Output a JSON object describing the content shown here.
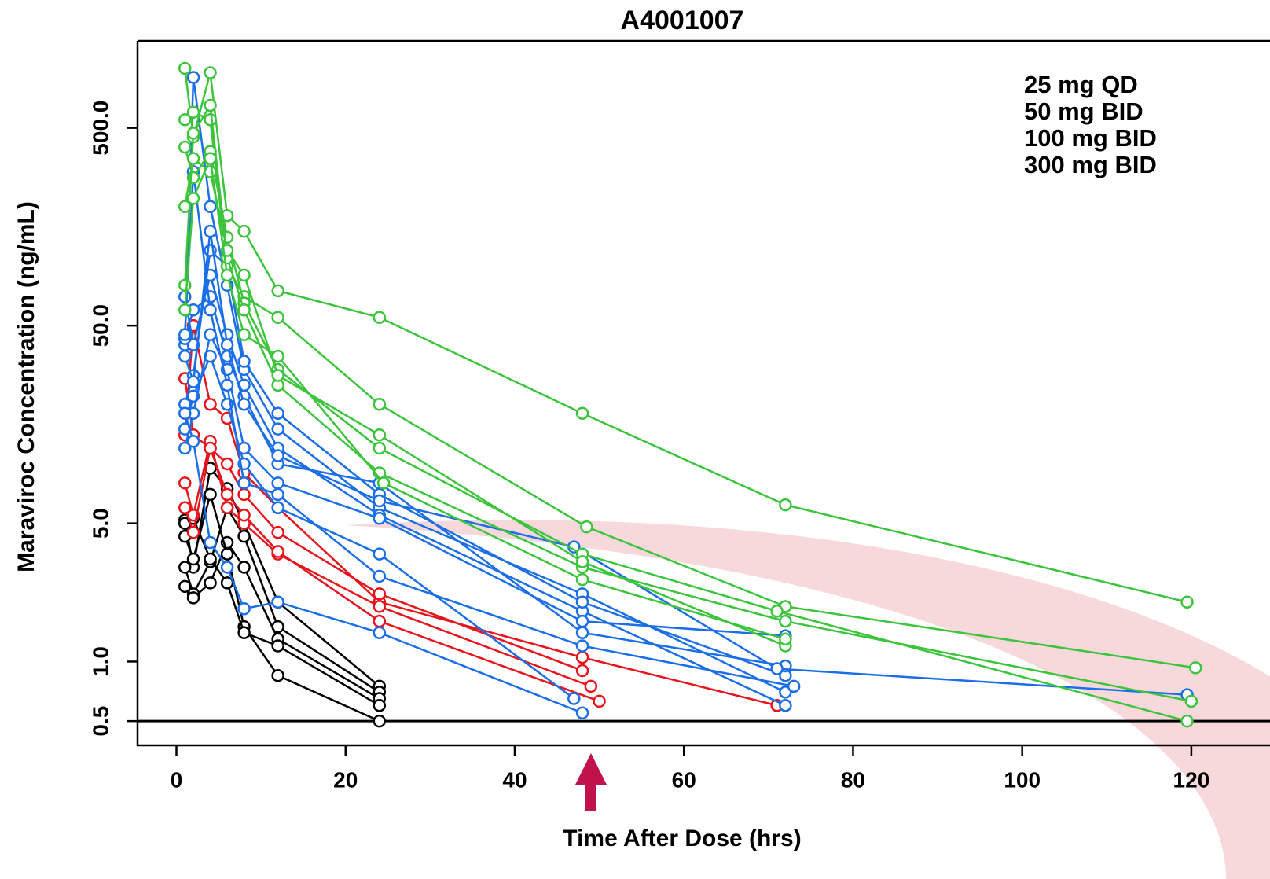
{
  "chart_data": {
    "type": "line",
    "title": "A4001007",
    "x_label": "Time After Dose (hrs)",
    "y_label": "Maraviroc Concentration (ng/mL)",
    "y_scale": "log",
    "xlim": [
      -4.6,
      129.3
    ],
    "ylim": [
      0.377,
      1377
    ],
    "xticks": [
      0,
      20,
      40,
      60,
      80,
      100,
      120
    ],
    "yticks": [
      0.5,
      {
        "value": 1,
        "label": "1.0"
      },
      {
        "value": 5,
        "label": "5.0"
      },
      {
        "value": 50,
        "label": "50.0"
      },
      {
        "value": 500,
        "label": "500.0"
      }
    ],
    "reference_line": 0.5,
    "legend_position": "top-right",
    "series": [
      {
        "name": "25 mg QD",
        "color": "#000000",
        "subjects": [
          {
            "x": [
              1,
              2,
              4,
              6,
              8,
              12,
              24
            ],
            "values": [
              5.2,
              3.0,
              9.5,
              7.5,
              5.0,
              2.0,
              0.75
            ]
          },
          {
            "x": [
              1,
              2,
              4,
              6,
              8,
              12,
              24
            ],
            "values": [
              3.0,
              2.2,
              3.2,
              6.0,
              4.3,
              1.5,
              0.7
            ]
          },
          {
            "x": [
              1,
              2,
              4,
              6,
              8,
              12,
              24
            ],
            "values": [
              2.4,
              2.1,
              2.5,
              4.0,
              3.0,
              1.3,
              0.65
            ]
          },
          {
            "x": [
              1,
              2,
              4,
              6,
              8,
              12,
              24
            ],
            "values": [
              4.3,
              3.3,
              7.0,
              3.5,
              1.5,
              0.85,
              0.5
            ]
          },
          {
            "x": [
              1,
              2,
              4,
              6,
              8,
              12,
              24
            ],
            "values": [
              5.0,
              5.3,
              3.3,
              2.5,
              1.4,
              1.2,
              0.6
            ]
          }
        ]
      },
      {
        "name": "50 mg BID",
        "color": "#e8141c",
        "subjects": [
          {
            "x": [
              1,
              2,
              4,
              6,
              8,
              12,
              24,
              48,
              71
            ],
            "values": [
              14,
              50,
              20,
              17,
              9,
              6,
              2.0,
              1.05,
              0.6
            ]
          },
          {
            "x": [
              1,
              2,
              4,
              6,
              8,
              12,
              24,
              48
            ],
            "values": [
              27,
              14,
              12,
              10,
              7,
              4.5,
              2.2,
              0.9
            ]
          },
          {
            "x": [
              1,
              2,
              4,
              6,
              8,
              12,
              24,
              49
            ],
            "values": [
              8,
              5.5,
              13,
              6,
              5,
              3.5,
              1.9,
              0.75
            ]
          },
          {
            "x": [
              1,
              2,
              4,
              6,
              8,
              12,
              24,
              50
            ],
            "values": [
              6,
              4.5,
              12,
              7,
              5.5,
              3.6,
              1.6,
              0.63
            ]
          }
        ]
      },
      {
        "name": "100 mg BID",
        "color": "#1a6ee8",
        "subjects": [
          {
            "x": [
              1,
              2,
              4,
              6,
              8,
              12,
              24,
              48,
              72
            ],
            "values": [
              40,
              900,
              200,
              80,
              30,
              15,
              6,
              2.2,
              0.7
            ]
          },
          {
            "x": [
              1,
              2,
              4,
              6,
              8,
              12,
              24,
              48,
              72
            ],
            "values": [
              70,
              40,
              90,
              45,
              25,
              12,
              5.5,
              1.8,
              0.6
            ]
          },
          {
            "x": [
              1,
              2,
              4,
              6,
              8,
              12,
              24,
              48,
              72
            ],
            "values": [
              20,
              28,
              120,
              100,
              33,
              18,
              7,
              2.0,
              0.85
            ]
          },
          {
            "x": [
              1,
              2,
              4,
              6,
              8,
              12,
              24,
              48,
              72
            ],
            "values": [
              43,
              60,
              70,
              35,
              22,
              10,
              8,
              1.4,
              0.95
            ]
          },
          {
            "x": [
              1,
              2,
              4,
              6,
              8,
              12,
              24,
              47
            ],
            "values": [
              15,
              22,
              35,
              20,
              10,
              6,
              3.5,
              0.65
            ]
          },
          {
            "x": [
              1,
              2,
              4,
              6,
              8,
              12,
              24,
              48,
              72
            ],
            "values": [
              12,
              18,
              45,
              30,
              12,
              8,
              5.3,
              1.6,
              1.35
            ]
          },
          {
            "x": [
              1,
              2,
              4,
              6,
              8,
              12,
              24,
              48
            ],
            "values": [
              18,
              13,
              4,
              3,
              1.85,
              2.0,
              1.4,
              0.55
            ]
          },
          {
            "x": [
              1,
              2,
              4,
              6,
              8,
              12,
              24,
              48,
              73
            ],
            "values": [
              45,
              300,
              60,
              25,
              8,
              7,
              2.7,
              1.2,
              0.75
            ]
          },
          {
            "x": [
              1,
              2,
              4,
              6,
              8,
              12,
              24,
              47,
              71,
              119.5
            ],
            "values": [
              35,
              26,
              150,
              40,
              20,
              11,
              6.5,
              3.8,
              0.92,
              0.68
            ]
          }
        ]
      },
      {
        "name": "300 mg BID",
        "color": "#3cc43c",
        "subjects": [
          {
            "x": [
              1,
              2,
              4,
              6,
              8,
              12,
              24,
              48,
              72,
              119.5
            ],
            "values": [
              1000,
              450,
              950,
              180,
              150,
              75,
              55,
              18,
              6.2,
              2.0
            ]
          },
          {
            "x": [
              1,
              2,
              4,
              6,
              8,
              12,
              24,
              48.5,
              72,
              120.5
            ],
            "values": [
              550,
              600,
              550,
              100,
              70,
              55,
              20,
              4.8,
              1.9,
              0.93
            ]
          },
          {
            "x": [
              1,
              2,
              4,
              6,
              8,
              12,
              24,
              48,
              71,
              119.5
            ],
            "values": [
              400,
              280,
              380,
              140,
              65,
              30,
              12,
              3.5,
              1.8,
              0.5
            ]
          },
          {
            "x": [
              1,
              2,
              4,
              6,
              8,
              12,
              24,
              48,
              72,
              120
            ],
            "values": [
              80,
              470,
              650,
              110,
              60,
              25,
              9,
              3.0,
              1.6,
              0.63
            ]
          },
          {
            "x": [
              1,
              2,
              4,
              6,
              8,
              12,
              24,
              48,
              72
            ],
            "values": [
              200,
              350,
              300,
              120,
              90,
              28,
              14,
              3.2,
              1.2
            ]
          },
          {
            "x": [
              1,
              2,
              4,
              6,
              8,
              12,
              24.5,
              48,
              72
            ],
            "values": [
              60,
              220,
              350,
              90,
              45,
              35,
              8,
              2.6,
              1.3
            ]
          }
        ]
      }
    ]
  }
}
